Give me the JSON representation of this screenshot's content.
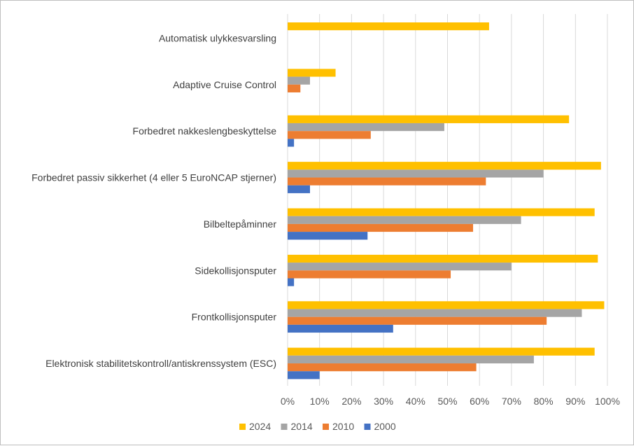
{
  "chart_data": {
    "type": "bar",
    "orientation": "horizontal",
    "categories": [
      "Automatisk ulykkesvarsling",
      "Adaptive Cruise Control",
      "Forbedret nakkeslengbeskyttelse",
      "Forbedret passiv sikkerhet (4 eller 5 EuroNCAP stjerner)",
      "Bilbeltepåminner",
      "Sidekollisjonsputer",
      "Frontkollisjonsputer",
      "Elektronisk stabilitetskontroll/antiskrenssystem (ESC)"
    ],
    "series": [
      {
        "name": "2024",
        "color": "#FFC000",
        "values": [
          63,
          15,
          88,
          98,
          96,
          97,
          99,
          96
        ]
      },
      {
        "name": "2014",
        "color": "#A5A5A5",
        "values": [
          0,
          7,
          49,
          80,
          73,
          70,
          92,
          77
        ]
      },
      {
        "name": "2010",
        "color": "#ED7D31",
        "values": [
          0,
          4,
          26,
          62,
          58,
          51,
          81,
          59
        ]
      },
      {
        "name": "2000",
        "color": "#4472C4",
        "values": [
          0,
          0,
          2,
          7,
          25,
          2,
          33,
          10
        ]
      }
    ],
    "xlim": [
      0,
      100
    ],
    "x_ticks": [
      "0%",
      "10%",
      "20%",
      "30%",
      "40%",
      "50%",
      "60%",
      "70%",
      "80%",
      "90%",
      "100%"
    ],
    "grid": true,
    "legend_position": "bottom",
    "title": "",
    "xlabel": "",
    "ylabel": ""
  }
}
